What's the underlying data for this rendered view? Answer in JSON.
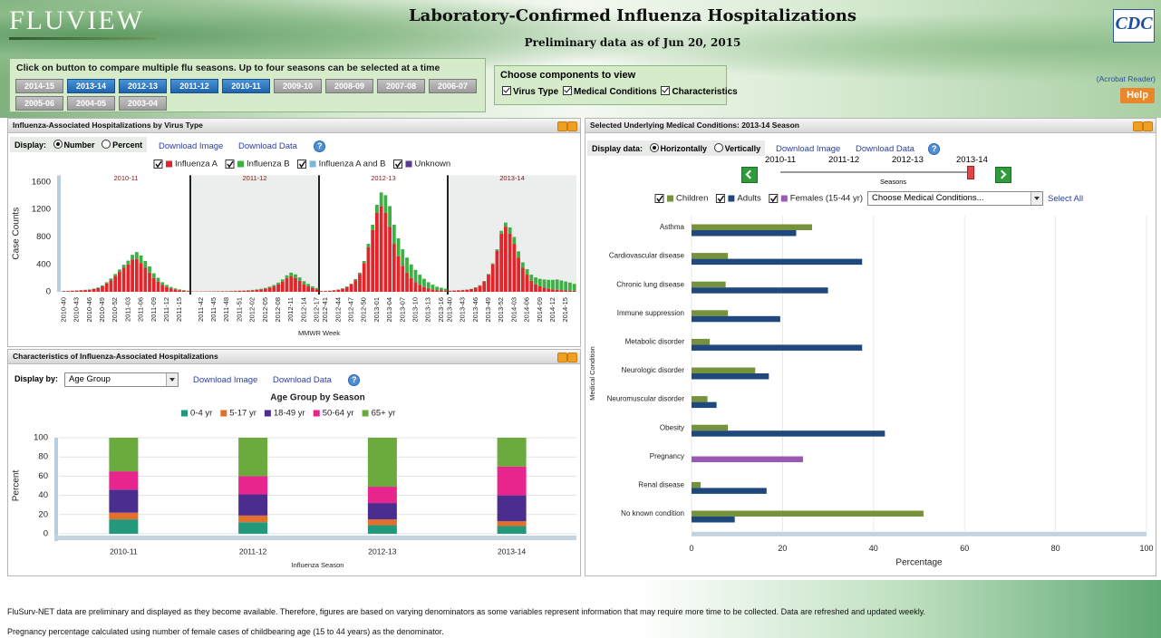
{
  "header": {
    "logo": "FLUVIEW",
    "title": "Laboratory-Confirmed Influenza Hospitalizations",
    "subtitle": "Preliminary data as of Jun 20, 2015",
    "agency": "CDC",
    "acrobat": "(Acrobat Reader)",
    "help": "Help"
  },
  "season_selector": {
    "instruction": "Click on button to compare multiple flu seasons. Up to four seasons can be selected at a time",
    "buttons": [
      {
        "label": "2014-15",
        "selected": false
      },
      {
        "label": "2013-14",
        "selected": true
      },
      {
        "label": "2012-13",
        "selected": true
      },
      {
        "label": "2011-12",
        "selected": true
      },
      {
        "label": "2010-11",
        "selected": true
      },
      {
        "label": "2009-10",
        "selected": false
      },
      {
        "label": "2008-09",
        "selected": false
      },
      {
        "label": "2007-08",
        "selected": false
      },
      {
        "label": "2006-07",
        "selected": false
      },
      {
        "label": "2005-06",
        "selected": false
      },
      {
        "label": "2004-05",
        "selected": false
      },
      {
        "label": "2003-04",
        "selected": false
      }
    ]
  },
  "components": {
    "title": "Choose components to view",
    "options": [
      "Virus Type",
      "Medical Conditions",
      "Characteristics"
    ]
  },
  "chart_data": [
    {
      "type": "bar",
      "stacked": true,
      "panel_title": "Influenza-Associated Hospitalizations by Virus Type",
      "display_label": "Display:",
      "display_options": [
        "Number",
        "Percent"
      ],
      "links": [
        "Download Image",
        "Download Data"
      ],
      "panels": [
        "2010-11",
        "2011-12",
        "2012-13",
        "2013-14"
      ],
      "categories": [
        "2010-40",
        null,
        null,
        "2010-43",
        null,
        null,
        "2010-46",
        null,
        null,
        "2010-49",
        null,
        null,
        "2010-52",
        null,
        null,
        "2011-03",
        null,
        null,
        "2011-06",
        null,
        null,
        "2011-09",
        null,
        null,
        "2011-12",
        null,
        null,
        "2011-15",
        null,
        null,
        null,
        null,
        "2011-42",
        null,
        null,
        "2011-45",
        null,
        null,
        "2011-48",
        null,
        null,
        "2011-51",
        null,
        null,
        "2012-02",
        null,
        null,
        "2012-05",
        null,
        null,
        "2012-08",
        null,
        null,
        "2012-11",
        null,
        null,
        "2012-14",
        null,
        null,
        "2012-17",
        null,
        "2012-41",
        null,
        null,
        "2012-44",
        null,
        null,
        "2012-47",
        null,
        null,
        "2012-50",
        null,
        null,
        "2013-01",
        null,
        null,
        "2013-04",
        null,
        null,
        "2013-07",
        null,
        null,
        "2013-10",
        null,
        null,
        "2013-13",
        null,
        null,
        "2013-16",
        null,
        "2013-40",
        null,
        null,
        "2013-43",
        null,
        null,
        "2013-46",
        null,
        null,
        "2013-49",
        null,
        null,
        "2013-52",
        null,
        null,
        "2014-03",
        null,
        null,
        "2014-06",
        null,
        null,
        "2014-09",
        null,
        null,
        "2014-12",
        null,
        null,
        "2014-15",
        null,
        null
      ],
      "series": [
        {
          "name": "Influenza A",
          "color": "#e0262b",
          "values": [
            10,
            12,
            15,
            18,
            20,
            25,
            30,
            40,
            55,
            80,
            120,
            170,
            230,
            290,
            350,
            400,
            470,
            480,
            420,
            350,
            280,
            200,
            150,
            100,
            70,
            50,
            35,
            25,
            18,
            12,
            5,
            5,
            5,
            6,
            6,
            7,
            7,
            8,
            8,
            10,
            12,
            14,
            16,
            18,
            22,
            28,
            35,
            45,
            60,
            80,
            110,
            150,
            200,
            230,
            200,
            160,
            110,
            80,
            55,
            35,
            10,
            12,
            15,
            20,
            30,
            45,
            70,
            110,
            170,
            260,
            420,
            650,
            900,
            1150,
            1250,
            1150,
            950,
            700,
            520,
            380,
            280,
            200,
            140,
            100,
            70,
            50,
            35,
            25,
            20,
            15,
            15,
            18,
            20,
            25,
            30,
            40,
            60,
            90,
            150,
            250,
            400,
            600,
            850,
            950,
            850,
            700,
            500,
            350,
            250,
            160,
            110,
            80,
            60,
            45,
            35,
            30,
            25,
            20,
            15,
            15
          ]
        },
        {
          "name": "Influenza B",
          "color": "#3cb043",
          "values": [
            2,
            2,
            3,
            3,
            4,
            5,
            6,
            8,
            10,
            15,
            20,
            25,
            30,
            35,
            45,
            55,
            70,
            100,
            110,
            100,
            90,
            70,
            55,
            40,
            30,
            20,
            15,
            10,
            7,
            5,
            1,
            1,
            1,
            1,
            1,
            1,
            2,
            2,
            2,
            2,
            3,
            3,
            4,
            5,
            6,
            8,
            10,
            12,
            15,
            20,
            25,
            30,
            40,
            50,
            55,
            50,
            45,
            35,
            25,
            20,
            2,
            3,
            3,
            4,
            5,
            6,
            8,
            10,
            15,
            20,
            30,
            50,
            80,
            120,
            200,
            260,
            300,
            280,
            260,
            240,
            220,
            200,
            180,
            150,
            120,
            90,
            70,
            50,
            40,
            30,
            2,
            2,
            3,
            3,
            4,
            4,
            5,
            6,
            8,
            10,
            15,
            20,
            40,
            60,
            90,
            100,
            90,
            80,
            80,
            90,
            100,
            110,
            120,
            130,
            140,
            150,
            140,
            130,
            120,
            100
          ]
        },
        {
          "name": "Influenza A and B",
          "color": "#7ab8d8",
          "values": [
            0,
            0,
            0,
            0,
            0,
            0,
            0,
            0,
            0,
            0,
            0,
            0,
            0,
            0,
            0,
            0,
            0,
            0,
            0,
            0,
            0,
            0,
            0,
            0,
            0,
            0,
            0,
            0,
            0,
            0,
            0,
            0,
            0,
            0,
            0,
            0,
            0,
            0,
            0,
            0,
            0,
            0,
            0,
            0,
            0,
            0,
            0,
            0,
            0,
            0,
            0,
            0,
            0,
            0,
            0,
            0,
            0,
            0,
            0,
            0,
            0,
            0,
            0,
            0,
            0,
            0,
            0,
            0,
            0,
            0,
            0,
            0,
            0,
            0,
            0,
            0,
            0,
            0,
            0,
            0,
            0,
            0,
            0,
            0,
            0,
            0,
            0,
            0,
            0,
            0,
            0,
            0,
            0,
            0,
            0,
            0,
            0,
            0,
            0,
            0,
            0,
            0,
            0,
            0,
            0,
            0,
            0,
            0,
            0,
            0,
            0,
            0,
            0,
            0,
            0,
            0,
            0,
            0,
            0,
            0
          ]
        },
        {
          "name": "Unknown",
          "color": "#5b3a91",
          "values": [
            0,
            0,
            0,
            0,
            0,
            0,
            0,
            0,
            0,
            0,
            0,
            0,
            0,
            0,
            0,
            0,
            0,
            0,
            0,
            0,
            0,
            0,
            0,
            0,
            0,
            0,
            0,
            0,
            0,
            0,
            0,
            0,
            0,
            0,
            0,
            0,
            0,
            0,
            0,
            0,
            0,
            0,
            0,
            0,
            0,
            0,
            0,
            0,
            0,
            0,
            0,
            0,
            0,
            0,
            0,
            0,
            0,
            0,
            0,
            0,
            0,
            0,
            0,
            0,
            0,
            0,
            0,
            0,
            0,
            0,
            0,
            0,
            0,
            0,
            0,
            0,
            0,
            0,
            0,
            0,
            0,
            0,
            0,
            0,
            0,
            0,
            0,
            0,
            0,
            0,
            0,
            0,
            0,
            0,
            0,
            0,
            0,
            0,
            0,
            0,
            0,
            0,
            0,
            0,
            0,
            0,
            0,
            0,
            0,
            0,
            0,
            0,
            0,
            0,
            0,
            0,
            0,
            0,
            0,
            0
          ]
        }
      ],
      "ylim": [
        0,
        1700
      ],
      "yticks": [
        0,
        400,
        800,
        1200,
        1600
      ],
      "ylabel": "Case Counts",
      "xlabel": "MMWR Week",
      "grid": false
    },
    {
      "type": "bar",
      "stacked": true,
      "panel_title": "Characteristics of Influenza-Associated Hospitalizations",
      "display_label": "Display by:",
      "select_value": "Age Group",
      "links": [
        "Download Image",
        "Download Data"
      ],
      "title": "Age Group by Season",
      "categories": [
        "2010-11",
        "2011-12",
        "2012-13",
        "2013-14"
      ],
      "series": [
        {
          "name": "0-4 yr",
          "color": "#22997a",
          "values": [
            15,
            12,
            9,
            8
          ]
        },
        {
          "name": "5-17 yr",
          "color": "#e2702c",
          "values": [
            7,
            7,
            6,
            5
          ]
        },
        {
          "name": "18-49 yr",
          "color": "#4a2d8f",
          "values": [
            24,
            22,
            17,
            27
          ]
        },
        {
          "name": "50-64 yr",
          "color": "#e8258c",
          "values": [
            19,
            19,
            17,
            30
          ]
        },
        {
          "name": "65+ yr",
          "color": "#6bab3d",
          "values": [
            35,
            40,
            51,
            30
          ]
        }
      ],
      "ylim": [
        0,
        100
      ],
      "yticks": [
        0,
        20,
        40,
        60,
        80,
        100
      ],
      "ylabel": "Percent",
      "xlabel": "Influenza Season",
      "grid": true
    },
    {
      "type": "bar",
      "orientation": "horizontal",
      "panel_title": "Selected Underlying Medical Conditions: 2013-14 Season",
      "display_label": "Display data:",
      "display_options": [
        "Horizontally",
        "Vertically"
      ],
      "links": [
        "Download Image",
        "Download Data"
      ],
      "seasons": [
        "2010-11",
        "2011-12",
        "2012-13",
        "2013-14"
      ],
      "seasons_label": "Seasons",
      "select_placeholder": "Choose Medical Conditions...",
      "select_all": "Select All",
      "categories": [
        "Asthma",
        "Cardiovascular disease",
        "Chronic lung disease",
        "Immune suppression",
        "Metabolic disorder",
        "Neurologic disorder",
        "Neuromuscular disorder",
        "Obesity",
        "Pregnancy",
        "Renal disease",
        "No known condition"
      ],
      "series": [
        {
          "name": "Children",
          "color": "#76923c",
          "values": [
            26.5,
            8,
            7.5,
            8,
            4,
            14,
            3.5,
            8,
            null,
            2,
            51
          ]
        },
        {
          "name": "Adults",
          "color": "#1f497d",
          "values": [
            23,
            37.5,
            30,
            19.5,
            37.5,
            17,
            5.5,
            42.5,
            null,
            16.5,
            9.5
          ]
        },
        {
          "name": "Females (15-44 yr)",
          "color": "#9b59b6",
          "values": [
            null,
            null,
            null,
            null,
            null,
            null,
            null,
            null,
            24.5,
            null,
            null
          ]
        }
      ],
      "xlim": [
        0,
        100
      ],
      "xticks": [
        0,
        20,
        40,
        60,
        80,
        100
      ],
      "xlabel": "Percentage",
      "ylabel": "Medical Condition",
      "grid": true
    }
  ],
  "footer": {
    "notes": [
      "FluSurv-NET data are preliminary and displayed as they become available. Therefore, figures are based on varying denominators as some variables represent information that may require more time to be collected. Data are refreshed and updated weekly.",
      "Pregnancy percentage calculated using number of female cases of childbearing age (15 to 44 years) as the denominator."
    ]
  }
}
